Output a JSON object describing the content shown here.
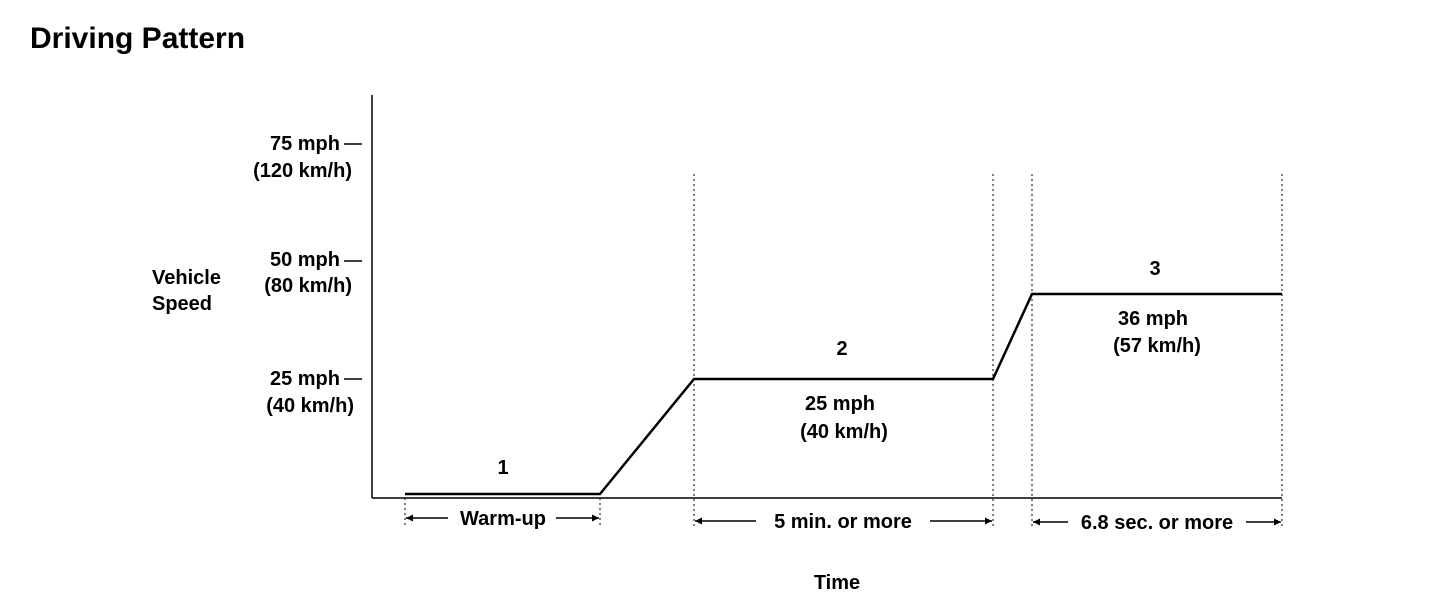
{
  "title": "Driving Pattern",
  "y_axis": {
    "label_line1": "Vehicle",
    "label_line2": "Speed",
    "ticks": [
      {
        "mph": "75 mph",
        "kmh": "(120 km/h)"
      },
      {
        "mph": "50 mph",
        "kmh": "(80 km/h)"
      },
      {
        "mph": "25 mph",
        "kmh": "(40 km/h)"
      }
    ]
  },
  "x_axis": {
    "label": "Time"
  },
  "phases": [
    {
      "number": "1",
      "duration": "Warm-up"
    },
    {
      "number": "2",
      "speed_mph": "25 mph",
      "speed_kmh": "(40 km/h)",
      "duration": "5 min. or more"
    },
    {
      "number": "3",
      "speed_mph": "36 mph",
      "speed_kmh": "(57 km/h)",
      "duration": "6.8 sec. or more"
    }
  ],
  "colors": {
    "ink": "#000000",
    "background": "#ffffff"
  }
}
